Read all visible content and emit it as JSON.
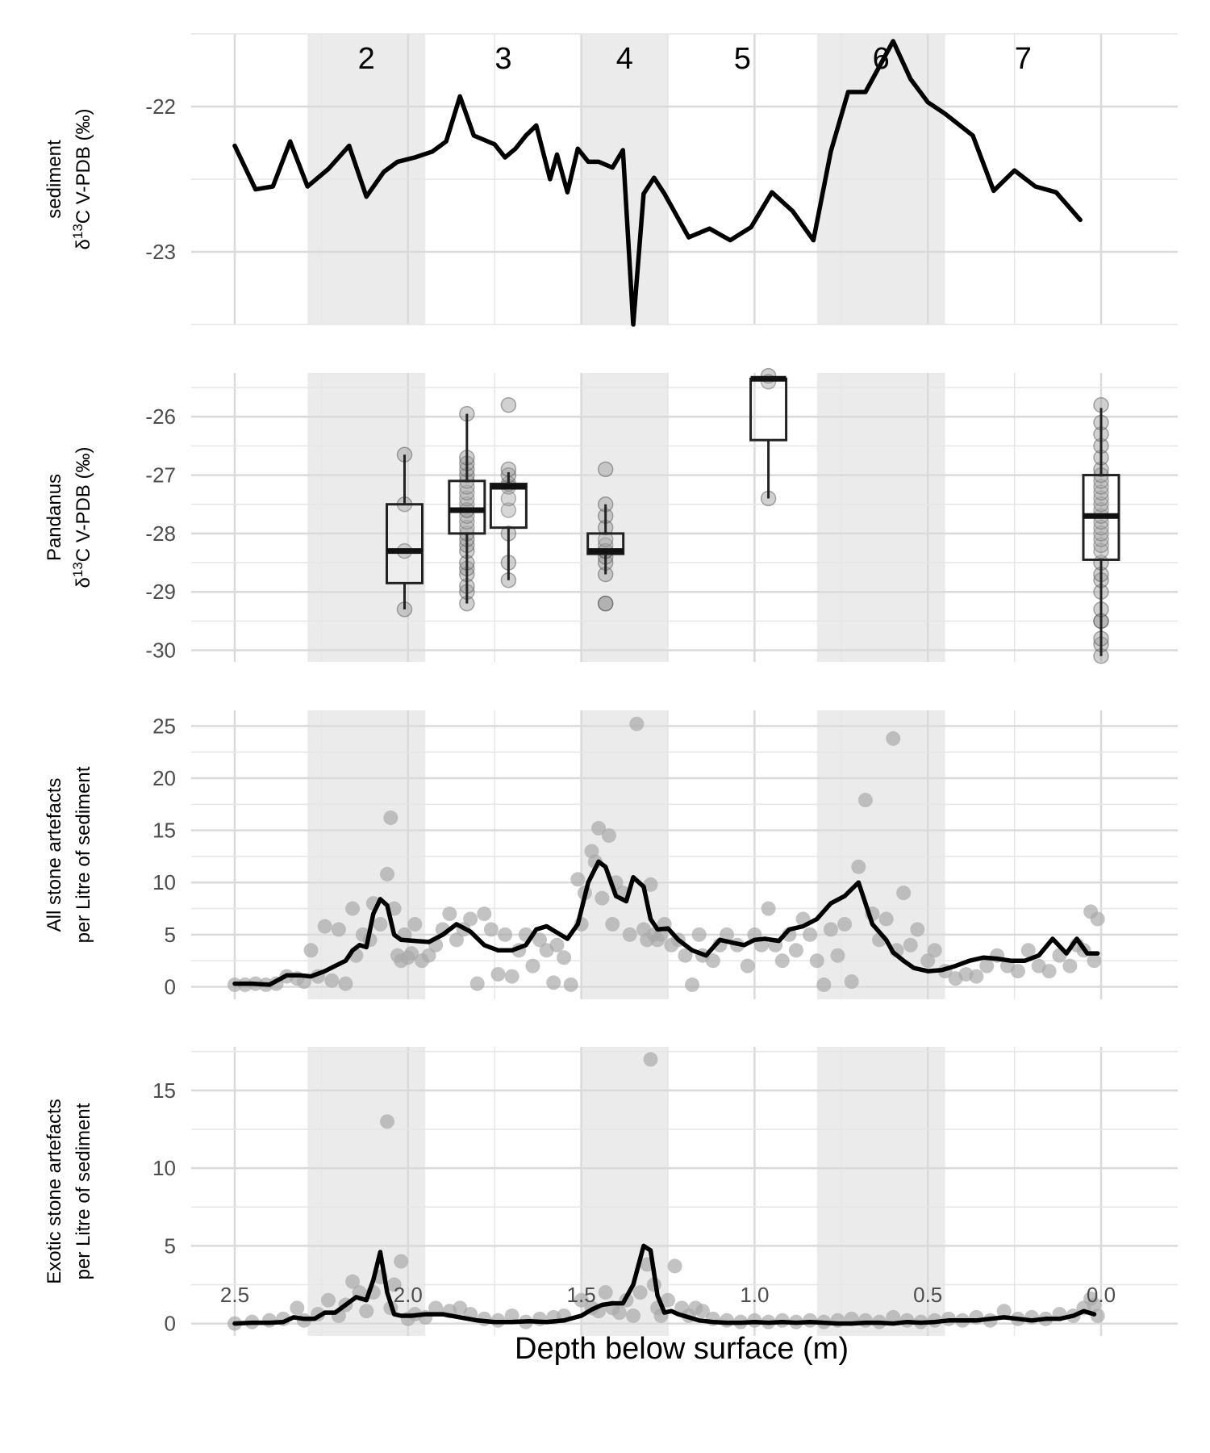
{
  "xlabel": "Depth below surface (m)",
  "x_ticks": [
    2.5,
    2.0,
    1.5,
    1.0,
    0.5,
    0.0
  ],
  "x_tick_labels": [
    "2.5",
    "2.0",
    "1.5",
    "1.0",
    "0.5",
    "0.0"
  ],
  "xlim": [
    2.5,
    0.0
  ],
  "zones": [
    {
      "label": "2",
      "range": [
        2.29,
        1.95
      ],
      "shaded": true
    },
    {
      "label": "3",
      "range": [
        1.95,
        1.5
      ],
      "shaded": false
    },
    {
      "label": "4",
      "range": [
        1.5,
        1.25
      ],
      "shaded": true
    },
    {
      "label": "5",
      "range": [
        1.25,
        0.82
      ],
      "shaded": false
    },
    {
      "label": "6",
      "range": [
        0.82,
        0.45
      ],
      "shaded": true
    },
    {
      "label": "7",
      "range": [
        0.45,
        0.0
      ],
      "shaded": false
    }
  ],
  "colors": {
    "line": "#000000",
    "points": "#aaaaaa",
    "shade": "#ebebeb",
    "grid": "#e6e6e6",
    "tick_text": "#4d4d4d"
  },
  "chart_data": [
    {
      "type": "line",
      "ylabel": [
        "sediment",
        "δ13C V-PDB (‰)"
      ],
      "ylim": [
        -23.5,
        -21.5
      ],
      "y_ticks": [
        -22,
        -23
      ],
      "y_tick_labels": [
        "-22",
        "-23"
      ],
      "series": [
        {
          "x": [
            2.5,
            2.44,
            2.39,
            2.34,
            2.29,
            2.23,
            2.17,
            2.12,
            2.07,
            2.03,
            1.98,
            1.93,
            1.89,
            1.85,
            1.81,
            1.78,
            1.75,
            1.72,
            1.69,
            1.66,
            1.63,
            1.59,
            1.57,
            1.54,
            1.51,
            1.48,
            1.45,
            1.41,
            1.38,
            1.35,
            1.32,
            1.29,
            1.26,
            1.19,
            1.13,
            1.07,
            1.01,
            0.95,
            0.89,
            0.83,
            0.78,
            0.73,
            0.68,
            0.6,
            0.55,
            0.5,
            0.45,
            0.37,
            0.31,
            0.25,
            0.19,
            0.13,
            0.06
          ],
          "y": [
            -22.27,
            -22.57,
            -22.55,
            -22.24,
            -22.55,
            -22.43,
            -22.27,
            -22.62,
            -22.45,
            -22.38,
            -22.35,
            -22.31,
            -22.24,
            -21.93,
            -22.2,
            -22.23,
            -22.26,
            -22.35,
            -22.29,
            -22.2,
            -22.13,
            -22.5,
            -22.33,
            -22.59,
            -22.29,
            -22.38,
            -22.38,
            -22.42,
            -22.3,
            -23.5,
            -22.6,
            -22.49,
            -22.6,
            -22.9,
            -22.84,
            -22.92,
            -22.83,
            -22.59,
            -22.72,
            -22.92,
            -22.31,
            -21.9,
            -21.9,
            -21.55,
            -21.81,
            -21.97,
            -22.05,
            -22.2,
            -22.58,
            -22.44,
            -22.55,
            -22.59,
            -22.78
          ]
        }
      ]
    },
    {
      "type": "box",
      "ylabel": [
        "Pandanus",
        "δ13C V-PDB (‰)"
      ],
      "ylim": [
        -30.2,
        -25.25
      ],
      "y_ticks": [
        -26,
        -27,
        -28,
        -29,
        -30
      ],
      "y_tick_labels": [
        "-26",
        "-27",
        "-28",
        "-29",
        "-30"
      ],
      "boxes": [
        {
          "x": 2.01,
          "min": -29.3,
          "q1": -28.85,
          "median": -28.3,
          "q3": -27.5,
          "max": -26.65,
          "points": [
            -29.3,
            -28.3,
            -27.5,
            -26.65
          ]
        },
        {
          "x": 1.83,
          "min": -29.2,
          "q1": -28.0,
          "median": -27.6,
          "q3": -27.1,
          "max": -25.95,
          "points": [
            -29.2,
            -29.0,
            -28.9,
            -28.7,
            -28.6,
            -28.5,
            -28.3,
            -28.2,
            -28.1,
            -28.0,
            -27.9,
            -27.8,
            -27.7,
            -27.6,
            -27.6,
            -27.5,
            -27.4,
            -27.3,
            -27.2,
            -27.1,
            -27.0,
            -26.9,
            -26.8,
            -26.7,
            -25.95
          ]
        },
        {
          "x": 1.71,
          "min": -28.8,
          "q1": -27.9,
          "median": -27.2,
          "q3": -27.15,
          "max": -26.95,
          "points": [
            -28.8,
            -28.5,
            -28.0,
            -27.6,
            -27.4,
            -27.2,
            -27.15,
            -27.0,
            -26.9,
            -25.8
          ]
        },
        {
          "x": 1.43,
          "min": -28.7,
          "q1": -28.35,
          "median": -28.3,
          "q3": -28.0,
          "max": -27.5,
          "points": [
            -29.2,
            -29.2,
            -28.7,
            -28.5,
            -28.4,
            -28.3,
            -28.3,
            -28.2,
            -28.1,
            -27.9,
            -27.7,
            -27.5,
            -26.9
          ]
        },
        {
          "x": 0.96,
          "min": -27.4,
          "q1": -26.4,
          "median": -25.35,
          "q3": -25.35,
          "max": -25.35,
          "points": [
            -27.4,
            -25.4,
            -25.3
          ]
        },
        {
          "x": 0.0,
          "min": -30.1,
          "q1": -28.45,
          "median": -27.7,
          "q3": -27.0,
          "max": -25.85,
          "points": [
            -30.1,
            -29.9,
            -29.8,
            -29.5,
            -29.5,
            -29.3,
            -29.0,
            -28.8,
            -28.7,
            -28.5,
            -28.3,
            -28.2,
            -28.1,
            -28.0,
            -27.9,
            -27.8,
            -27.7,
            -27.6,
            -27.5,
            -27.4,
            -27.3,
            -27.2,
            -27.1,
            -27.0,
            -26.9,
            -26.7,
            -26.5,
            -26.3,
            -26.1,
            -25.8
          ]
        }
      ]
    },
    {
      "type": "scatter",
      "ylabel": [
        "All stone artefacts",
        "per Litre of sediment"
      ],
      "ylim": [
        -1.2,
        26.5
      ],
      "y_ticks": [
        25,
        20,
        15,
        10,
        5,
        0
      ],
      "y_tick_labels": [
        "25",
        "20",
        "15",
        "10",
        "5",
        "0"
      ],
      "points": {
        "x": [
          2.5,
          2.47,
          2.44,
          2.41,
          2.38,
          2.35,
          2.32,
          2.3,
          2.28,
          2.26,
          2.24,
          2.22,
          2.2,
          2.18,
          2.16,
          2.15,
          2.13,
          2.11,
          2.1,
          2.08,
          2.06,
          2.05,
          2.04,
          2.03,
          2.02,
          2.01,
          2.0,
          1.99,
          1.98,
          1.96,
          1.94,
          1.92,
          1.9,
          1.88,
          1.86,
          1.84,
          1.82,
          1.8,
          1.78,
          1.76,
          1.74,
          1.72,
          1.7,
          1.68,
          1.66,
          1.64,
          1.62,
          1.6,
          1.58,
          1.57,
          1.55,
          1.53,
          1.51,
          1.5,
          1.49,
          1.47,
          1.46,
          1.45,
          1.44,
          1.42,
          1.41,
          1.4,
          1.38,
          1.36,
          1.34,
          1.32,
          1.31,
          1.3,
          1.29,
          1.28,
          1.27,
          1.26,
          1.24,
          1.22,
          1.2,
          1.18,
          1.16,
          1.15,
          1.12,
          1.1,
          1.08,
          1.05,
          1.02,
          1.0,
          0.98,
          0.96,
          0.94,
          0.92,
          0.9,
          0.88,
          0.86,
          0.84,
          0.82,
          0.8,
          0.78,
          0.76,
          0.74,
          0.72,
          0.7,
          0.68,
          0.66,
          0.64,
          0.62,
          0.6,
          0.59,
          0.57,
          0.55,
          0.53,
          0.5,
          0.48,
          0.45,
          0.42,
          0.39,
          0.36,
          0.33,
          0.3,
          0.27,
          0.24,
          0.21,
          0.18,
          0.15,
          0.12,
          0.09,
          0.07,
          0.05,
          0.03,
          0.02,
          0.01
        ],
        "y": [
          0.2,
          0.2,
          0.3,
          0.2,
          0.3,
          1.0,
          0.8,
          0.5,
          3.5,
          1.0,
          5.8,
          0.6,
          5.5,
          0.3,
          7.5,
          3.0,
          5.0,
          4.5,
          8.0,
          6.0,
          10.8,
          16.2,
          7.5,
          3.0,
          2.5,
          5.0,
          2.8,
          3.2,
          6.0,
          2.5,
          3.0,
          4.0,
          5.5,
          7.0,
          4.5,
          5.5,
          6.5,
          0.3,
          7.0,
          5.5,
          1.2,
          5.0,
          1.0,
          3.5,
          5.0,
          2.0,
          4.5,
          3.5,
          0.4,
          4.0,
          2.8,
          0.2,
          10.3,
          6.0,
          9.0,
          13.0,
          12.0,
          15.2,
          8.5,
          14.5,
          6.0,
          10.0,
          9.0,
          5.0,
          25.2,
          5.5,
          4.5,
          9.8,
          5.0,
          4.5,
          5.0,
          6.0,
          4.0,
          4.5,
          3.0,
          0.2,
          5.0,
          3.0,
          2.5,
          4.0,
          5.0,
          4.0,
          2.0,
          5.0,
          4.0,
          7.5,
          4.0,
          2.5,
          5.0,
          3.5,
          6.5,
          5.0,
          2.5,
          0.2,
          5.5,
          3.0,
          6.0,
          0.5,
          11.5,
          17.9,
          7.0,
          4.5,
          6.5,
          23.8,
          3.5,
          9.0,
          4.0,
          5.5,
          2.5,
          3.5,
          1.5,
          0.8,
          1.2,
          1.0,
          2.0,
          3.0,
          2.0,
          1.5,
          3.5,
          2.0,
          1.5,
          3.0,
          2.0,
          4.0,
          3.5,
          7.2,
          2.5,
          6.5
        ],
        "color": "#aaaaaa"
      },
      "series": [
        {
          "x": [
            2.5,
            2.45,
            2.4,
            2.35,
            2.31,
            2.28,
            2.24,
            2.21,
            2.18,
            2.16,
            2.14,
            2.12,
            2.1,
            2.08,
            2.06,
            2.04,
            2.02,
            1.98,
            1.94,
            1.9,
            1.86,
            1.82,
            1.78,
            1.74,
            1.7,
            1.66,
            1.63,
            1.6,
            1.57,
            1.54,
            1.51,
            1.48,
            1.45,
            1.43,
            1.4,
            1.37,
            1.35,
            1.32,
            1.3,
            1.28,
            1.25,
            1.22,
            1.18,
            1.14,
            1.1,
            1.06,
            1.03,
            1.0,
            0.97,
            0.93,
            0.9,
            0.86,
            0.82,
            0.78,
            0.74,
            0.7,
            0.66,
            0.62,
            0.6,
            0.57,
            0.54,
            0.5,
            0.46,
            0.42,
            0.38,
            0.34,
            0.3,
            0.26,
            0.22,
            0.18,
            0.14,
            0.1,
            0.07,
            0.04,
            0.01
          ],
          "y": [
            0.3,
            0.3,
            0.2,
            1.1,
            1.1,
            1.0,
            1.5,
            2.0,
            2.5,
            3.5,
            4.0,
            3.8,
            7.0,
            8.4,
            7.8,
            5.0,
            4.5,
            4.4,
            4.3,
            5.0,
            6.0,
            5.3,
            4.0,
            3.5,
            3.5,
            4.0,
            5.5,
            5.8,
            5.2,
            4.6,
            6.0,
            10.0,
            12.0,
            11.5,
            8.7,
            8.2,
            10.5,
            9.6,
            6.5,
            5.5,
            5.6,
            4.5,
            3.5,
            3.0,
            4.5,
            4.2,
            4.0,
            4.5,
            4.6,
            4.4,
            5.5,
            5.8,
            6.5,
            8.0,
            8.7,
            10.0,
            6.0,
            4.5,
            3.3,
            2.5,
            1.8,
            1.5,
            1.6,
            2.0,
            2.5,
            2.8,
            2.7,
            2.5,
            2.5,
            3.0,
            4.6,
            3.2,
            4.6,
            3.2,
            3.2
          ]
        }
      ]
    },
    {
      "type": "scatter",
      "ylabel": [
        "Exotic stone artefacts",
        "per Litre of sediment"
      ],
      "ylim": [
        -0.8,
        17.8
      ],
      "y_ticks": [
        15,
        10,
        5,
        0
      ],
      "y_tick_labels": [
        "15",
        "10",
        "5",
        "0"
      ],
      "points": {
        "x": [
          2.5,
          2.45,
          2.4,
          2.36,
          2.32,
          2.3,
          2.26,
          2.23,
          2.2,
          2.18,
          2.16,
          2.14,
          2.12,
          2.1,
          2.08,
          2.06,
          2.05,
          2.04,
          2.02,
          2.0,
          1.98,
          1.95,
          1.92,
          1.88,
          1.85,
          1.82,
          1.78,
          1.74,
          1.7,
          1.66,
          1.62,
          1.58,
          1.55,
          1.5,
          1.47,
          1.45,
          1.43,
          1.41,
          1.39,
          1.37,
          1.35,
          1.33,
          1.31,
          1.3,
          1.29,
          1.28,
          1.27,
          1.25,
          1.23,
          1.21,
          1.19,
          1.17,
          1.15,
          1.12,
          1.08,
          1.04,
          1.0,
          0.96,
          0.92,
          0.88,
          0.84,
          0.8,
          0.76,
          0.72,
          0.68,
          0.64,
          0.6,
          0.56,
          0.52,
          0.48,
          0.44,
          0.4,
          0.36,
          0.32,
          0.28,
          0.24,
          0.2,
          0.16,
          0.12,
          0.08,
          0.05,
          0.03,
          0.02,
          0.01
        ],
        "y": [
          0.0,
          0.1,
          0.2,
          0.3,
          1.0,
          0.2,
          0.6,
          1.5,
          0.5,
          1.2,
          2.7,
          2.0,
          0.8,
          2.0,
          3.0,
          13.0,
          1.0,
          2.5,
          4.0,
          0.3,
          0.6,
          0.4,
          1.0,
          0.8,
          1.0,
          0.6,
          0.3,
          0.2,
          0.5,
          0.1,
          0.3,
          0.4,
          0.5,
          1.5,
          1.0,
          0.8,
          2.0,
          1.0,
          0.7,
          1.5,
          0.5,
          2.0,
          3.8,
          17.0,
          2.5,
          1.0,
          0.5,
          1.5,
          3.7,
          1.0,
          0.5,
          1.0,
          0.8,
          0.3,
          0.2,
          0.1,
          0.2,
          0.1,
          0.2,
          0.1,
          0.2,
          0.1,
          0.2,
          0.3,
          0.2,
          0.1,
          0.4,
          0.2,
          0.1,
          0.2,
          0.3,
          0.2,
          0.4,
          0.2,
          0.8,
          0.3,
          0.4,
          0.3,
          0.6,
          0.5,
          1.0,
          1.6,
          1.2,
          0.5
        ],
        "color": "#aaaaaa"
      },
      "series": [
        {
          "x": [
            2.5,
            2.45,
            2.4,
            2.36,
            2.33,
            2.3,
            2.27,
            2.24,
            2.21,
            2.18,
            2.15,
            2.12,
            2.1,
            2.08,
            2.06,
            2.04,
            2.02,
            1.99,
            1.95,
            1.9,
            1.85,
            1.8,
            1.75,
            1.7,
            1.65,
            1.6,
            1.55,
            1.5,
            1.47,
            1.44,
            1.41,
            1.38,
            1.35,
            1.32,
            1.3,
            1.28,
            1.26,
            1.24,
            1.22,
            1.19,
            1.16,
            1.12,
            1.08,
            1.04,
            1.0,
            0.96,
            0.92,
            0.88,
            0.84,
            0.8,
            0.76,
            0.72,
            0.68,
            0.64,
            0.6,
            0.56,
            0.52,
            0.48,
            0.44,
            0.4,
            0.36,
            0.32,
            0.28,
            0.24,
            0.2,
            0.16,
            0.12,
            0.08,
            0.05,
            0.02
          ],
          "y": [
            0.0,
            0.05,
            0.05,
            0.1,
            0.4,
            0.3,
            0.3,
            0.7,
            0.7,
            1.2,
            1.7,
            1.5,
            2.8,
            4.6,
            2.0,
            0.6,
            0.5,
            0.5,
            0.6,
            0.6,
            0.4,
            0.2,
            0.1,
            0.1,
            0.15,
            0.1,
            0.2,
            0.5,
            0.9,
            1.2,
            1.3,
            1.3,
            2.5,
            5.0,
            4.7,
            1.8,
            0.7,
            0.8,
            0.6,
            0.4,
            0.2,
            0.1,
            0.05,
            0.05,
            0.1,
            0.05,
            0.1,
            0.05,
            0.1,
            0.05,
            0.0,
            0.0,
            0.05,
            0.05,
            0.0,
            0.1,
            0.05,
            0.1,
            0.2,
            0.2,
            0.2,
            0.3,
            0.4,
            0.3,
            0.2,
            0.3,
            0.3,
            0.5,
            0.8,
            0.6
          ]
        }
      ]
    }
  ]
}
